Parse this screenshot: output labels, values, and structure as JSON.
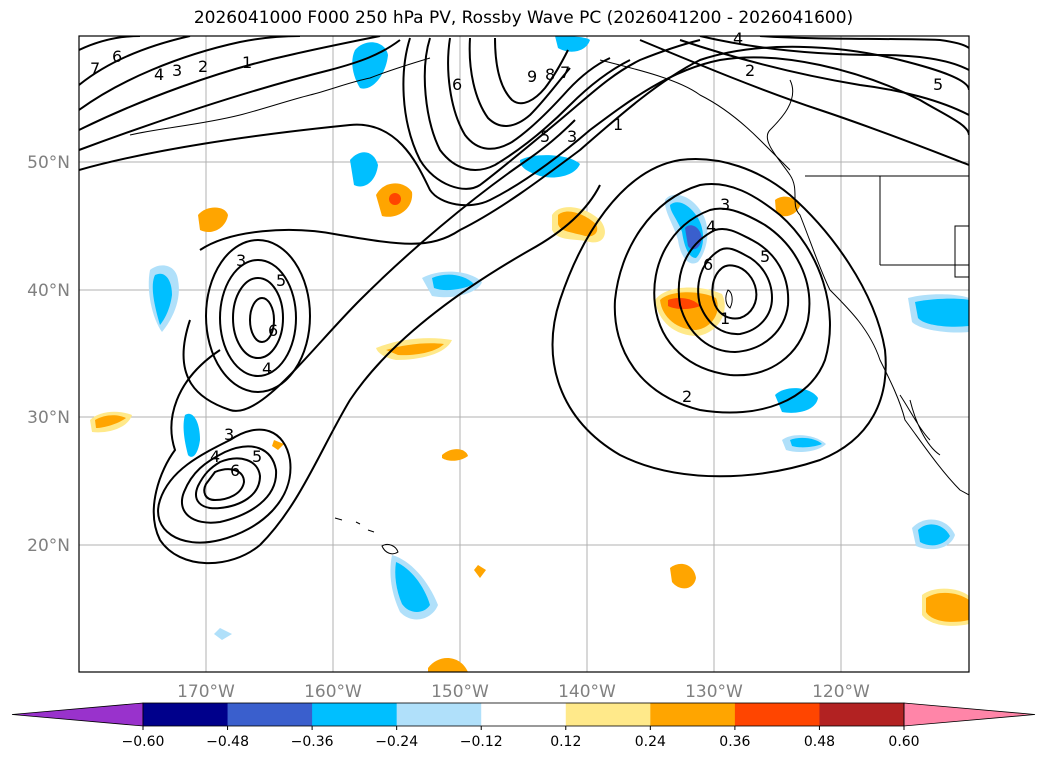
{
  "title": "2026041000 F000 250 hPa PV, Rossby Wave PC (2026041200 - 2026041600)",
  "map": {
    "lat_labels": [
      "50°N",
      "40°N",
      "30°N",
      "20°N"
    ],
    "lon_labels": [
      "170°W",
      "160°W",
      "150°W",
      "140°W",
      "130°W",
      "120°W"
    ],
    "contour_labels": [
      "7",
      "6",
      "4",
      "3",
      "2",
      "1",
      "6",
      "9",
      "8",
      "7",
      "5",
      "3",
      "1",
      "4",
      "2",
      "5",
      "3",
      "4",
      "6",
      "5",
      "1",
      "2",
      "3",
      "5",
      "6",
      "4",
      "3",
      "4",
      "6",
      "5"
    ]
  },
  "colorbar": {
    "ticks": [
      "−0.60",
      "−0.48",
      "−0.36",
      "−0.24",
      "−0.12",
      "0.12",
      "0.24",
      "0.36",
      "0.48",
      "0.60"
    ],
    "colors": [
      "#9932cc",
      "#00008b",
      "#3a5fcd",
      "#00bfff",
      "#b0e0fa",
      "#ffffff",
      "#ffe98a",
      "#ffa500",
      "#ff4500",
      "#b22222",
      "#ff85a8"
    ]
  }
}
